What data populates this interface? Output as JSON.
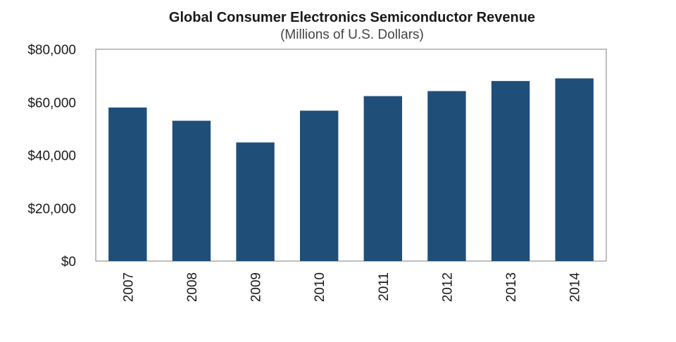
{
  "chart_data": {
    "type": "bar",
    "title": "Global Consumer Electronics Semiconductor Revenue",
    "subtitle": "(Millions of U.S. Dollars)",
    "categories": [
      "2007",
      "2008",
      "2009",
      "2010",
      "2011",
      "2012",
      "2013",
      "2014"
    ],
    "values": [
      58000,
      53000,
      44800,
      56800,
      62300,
      64200,
      68000,
      69000
    ],
    "yticks": [
      "$0",
      "$20,000",
      "$40,000",
      "$60,000",
      "$80,000"
    ],
    "ylim": [
      0,
      80000
    ],
    "grid": false,
    "legend": "none",
    "bar_color": "#1F4E79",
    "xlabel": "",
    "ylabel": ""
  }
}
